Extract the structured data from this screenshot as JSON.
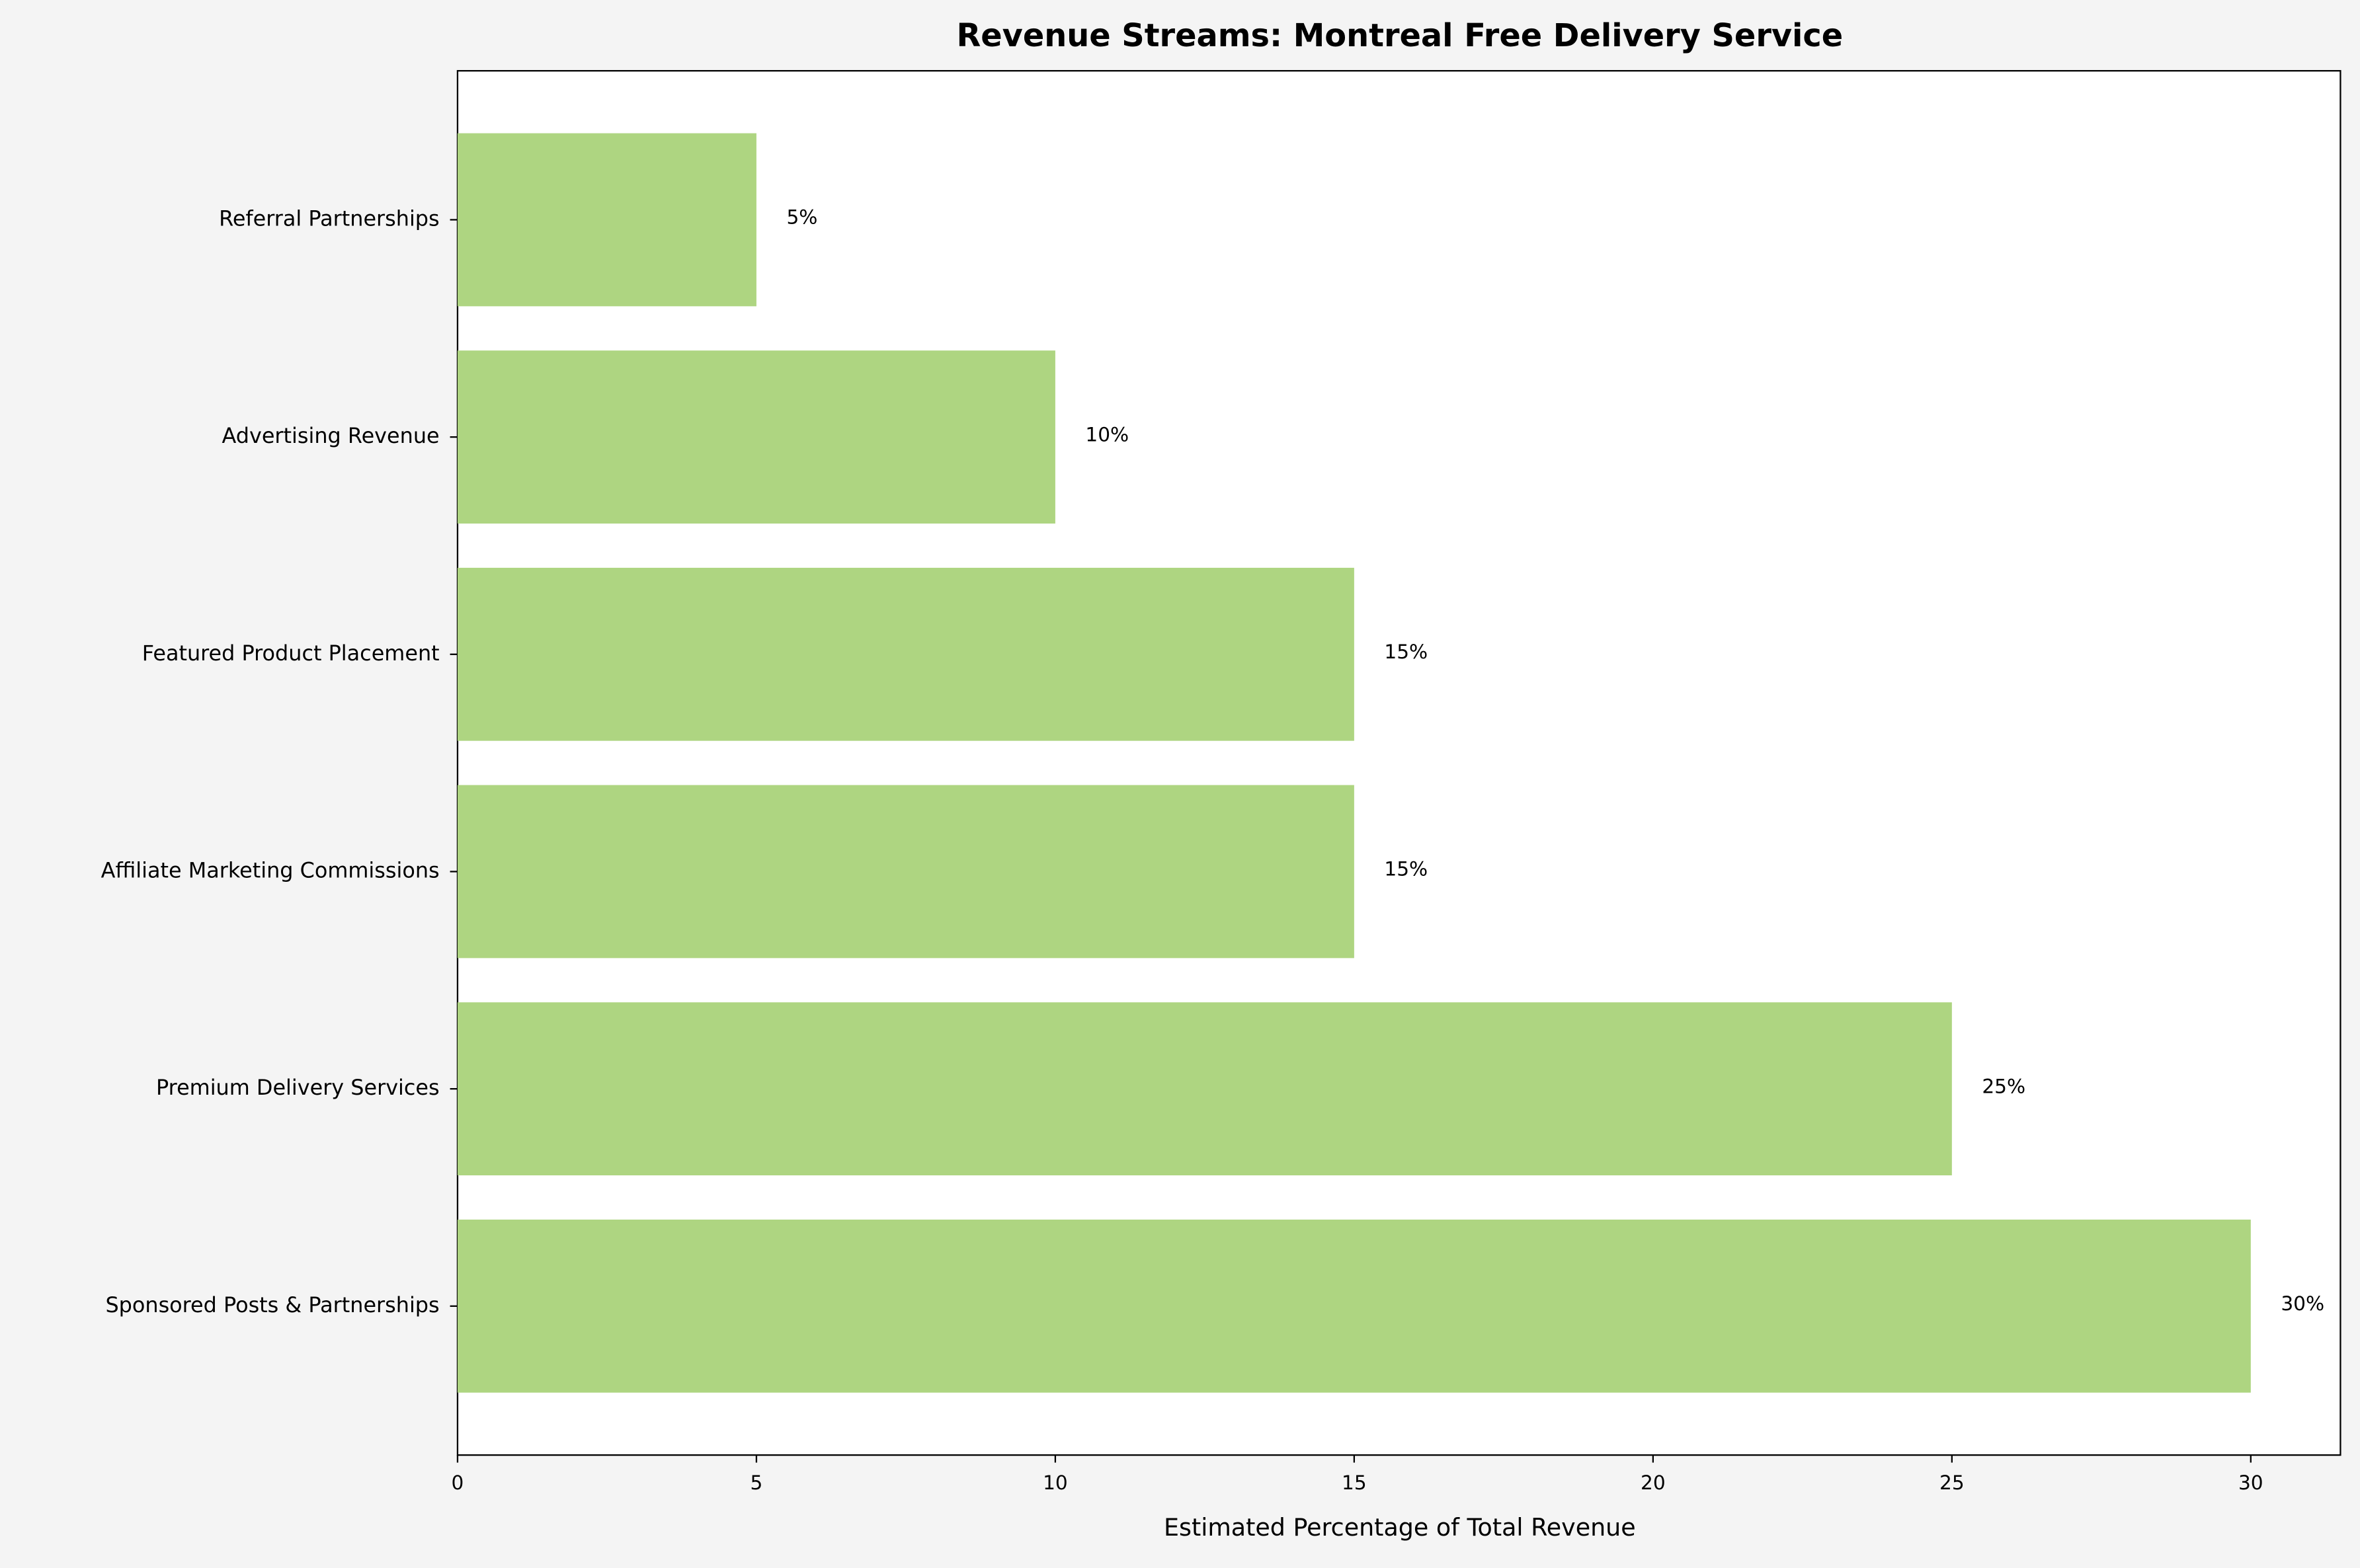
{
  "chart_data": {
    "type": "barh",
    "title": "Revenue Streams: Montreal Free Delivery Service",
    "x_label": "Estimated Percentage of Total Revenue",
    "categories": [
      "Sponsored Posts & Partnerships",
      "Premium Delivery Services",
      "Affiliate Marketing Commissions",
      "Featured Product Placement",
      "Advertising Revenue",
      "Referral Partnerships"
    ],
    "values": [
      30,
      25,
      15,
      15,
      10,
      5
    ],
    "value_labels": [
      "30%",
      "25%",
      "15%",
      "15%",
      "10%",
      "5%"
    ],
    "color": "#aed581",
    "xlim": [
      0,
      31.5
    ],
    "xticks": [
      0,
      5,
      10,
      15,
      20,
      25,
      30
    ]
  }
}
